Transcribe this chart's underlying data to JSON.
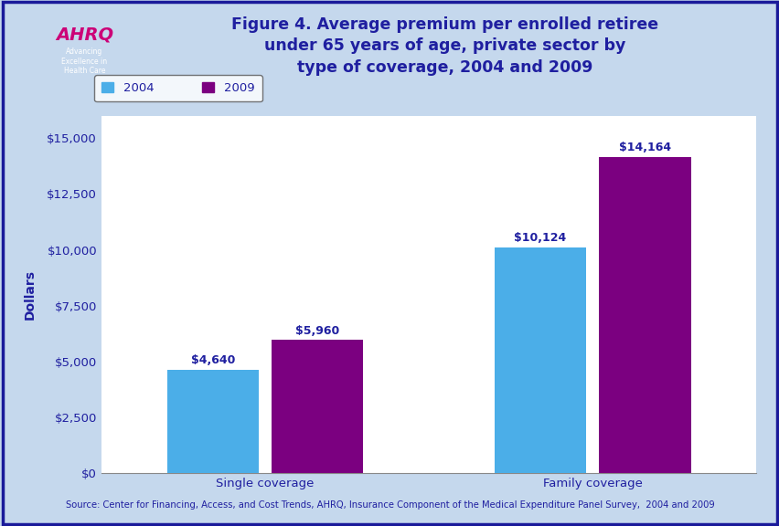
{
  "title": "Figure 4. Average premium per enrolled retiree\nunder 65 years of age, private sector by\ntype of coverage, 2004 and 2009",
  "title_color": "#1f1fa0",
  "title_fontsize": 12.5,
  "categories": [
    "Single coverage",
    "Family coverage"
  ],
  "series": {
    "2004": [
      4640,
      10124
    ],
    "2009": [
      5960,
      14164
    ]
  },
  "bar_colors": {
    "2004": "#4baee8",
    "2009": "#7b0080"
  },
  "bar_labels": {
    "2004": [
      "$4,640",
      "$10,124"
    ],
    "2009": [
      "$5,960",
      "$14,164"
    ]
  },
  "ylabel": "Dollars",
  "ylabel_color": "#1f1fa0",
  "ylabel_fontsize": 10,
  "ylim": [
    0,
    16000
  ],
  "yticks": [
    0,
    2500,
    5000,
    7500,
    10000,
    12500,
    15000
  ],
  "ytick_labels": [
    "$0",
    "$2,500",
    "$5,000",
    "$7,500",
    "$10,000",
    "$12,500",
    "$15,000"
  ],
  "tick_color": "#1f1fa0",
  "tick_fontsize": 9.5,
  "xtick_fontsize": 9.5,
  "bar_width": 0.28,
  "bar_label_color": "#1f1fa0",
  "bar_label_fontsize": 9,
  "legend_labels": [
    "2004",
    "2009"
  ],
  "source_text": "Source: Center for Financing, Access, and Cost Trends, AHRQ, Insurance Component of the Medical Expenditure Panel Survey,  2004 and 2009",
  "source_fontsize": 7.2,
  "source_color": "#1f1fa0",
  "background_color": "#ffffff",
  "header_bg": "#ffffff",
  "blue_stripe_color": "#1a1a9a",
  "outer_bg": "#c5d8ed",
  "border_color": "#1a1a9a",
  "logo_bg": "#0099bb",
  "logo_text_color": "#ffffff"
}
